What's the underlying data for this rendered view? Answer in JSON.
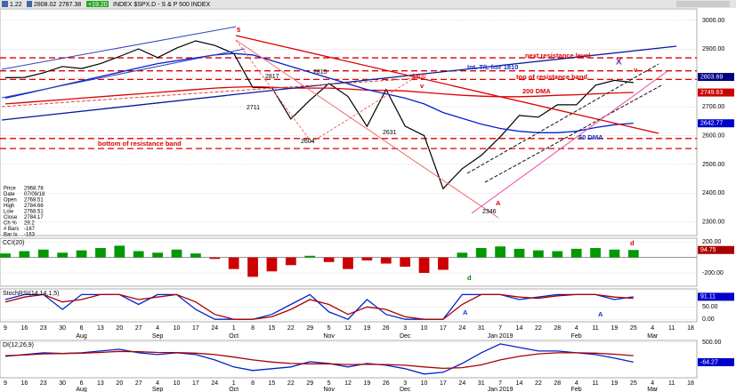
{
  "chart_data": [
    {
      "type": "line",
      "title": "INDEX $SPX.D - S & P 500 INDEX",
      "header": [
        "1.22",
        "2808.02",
        "2787.38",
        "+19.20"
      ],
      "categories": [
        "9",
        "16",
        "23",
        "30",
        "6",
        "13",
        "20",
        "27",
        "4",
        "10",
        "17",
        "24",
        "1",
        "8",
        "15",
        "22",
        "29",
        "5",
        "12",
        "19",
        "26",
        "3",
        "10",
        "17",
        "24",
        "31",
        "7",
        "14",
        "22",
        "28",
        "4",
        "11",
        "19",
        "25",
        "4",
        "11",
        "18"
      ],
      "month_labels": [
        null,
        null,
        null,
        null,
        "Aug",
        null,
        null,
        null,
        "Sep",
        null,
        null,
        null,
        "Oct",
        null,
        null,
        null,
        null,
        "Nov",
        null,
        null,
        null,
        "Dec",
        null,
        null,
        null,
        null,
        "Jan 2019",
        null,
        null,
        null,
        "Feb",
        null,
        null,
        null,
        "Mar",
        null,
        null
      ],
      "series": [
        {
          "color": "#000000",
          "values": [
            2801,
            2802,
            2818,
            2840,
            2833,
            2850,
            2875,
            2901,
            2871,
            2904,
            2929,
            2913,
            2885,
            2767,
            2767,
            2658,
            2723,
            2781,
            2736,
            2632,
            2760,
            2633,
            2600,
            2416,
            2485,
            2531,
            2596,
            2670,
            2664,
            2707,
            2707,
            2775,
            2792,
            2784,
            null,
            null,
            null
          ]
        },
        {
          "name": "200 DMA",
          "color": "#dd0000",
          "values": [
            2710,
            2715,
            2720,
            2725,
            2730,
            2735,
            2740,
            2745,
            2750,
            2755,
            2760,
            2765,
            2768,
            2770,
            2768,
            2765,
            2765,
            2765,
            2762,
            2758,
            2757,
            2755,
            2750,
            2745,
            2740,
            2737,
            2735,
            2735,
            2737,
            2740,
            2742,
            2745,
            2748,
            2750,
            null,
            null,
            null
          ]
        },
        {
          "name": "50 DMA",
          "color": "#0022cc",
          "values": [
            2730,
            2745,
            2760,
            2775,
            2790,
            2805,
            2820,
            2835,
            2850,
            2860,
            2870,
            2880,
            2885,
            2880,
            2860,
            2840,
            2820,
            2800,
            2780,
            2760,
            2745,
            2730,
            2710,
            2680,
            2660,
            2640,
            2625,
            2615,
            2610,
            2610,
            2615,
            2628,
            2638,
            2643,
            null,
            null,
            null
          ]
        }
      ],
      "ylim": [
        2253,
        3040
      ],
      "yticks": [
        {
          "value": 3000,
          "label": "3000.00"
        },
        {
          "value": 2900,
          "label": "2900.00"
        },
        {
          "value": 2800,
          "label": "2800.00"
        },
        {
          "value": 2700,
          "label": "2700.00"
        },
        {
          "value": 2600,
          "label": "2600.00"
        },
        {
          "value": 2500,
          "label": "2500.00"
        },
        {
          "value": 2400,
          "label": "2400.00"
        },
        {
          "value": 2300,
          "label": "2300.00"
        }
      ],
      "levels": [
        {
          "value": 2870
        },
        {
          "value": 2825
        },
        {
          "value": 2795
        },
        {
          "value": 2590
        },
        {
          "value": 2555
        }
      ],
      "level_color": "#dd0000",
      "value_boxes": [
        {
          "value": 2803.69,
          "color": "#000080"
        },
        {
          "value": 2749.63,
          "color": "#cc0000"
        },
        {
          "value": 2642.77,
          "color": "#0000cc"
        }
      ],
      "price_annotations": [
        2815,
        2817,
        2711,
        2604,
        2631,
        2800,
        2346
      ],
      "annotations": {
        "next_resistance": "next resistance level",
        "int_tl": "Int. T/L fmr 1810",
        "top_band": "top of resistance band",
        "bottom_band": "bottom of resistance band",
        "marks": [
          "5",
          "v",
          "v",
          "X",
          "A",
          "d",
          "d",
          "A",
          "A"
        ]
      },
      "info": [
        {
          "label": "Price",
          "value": 2968.78
        },
        {
          "label": "Date",
          "value": "07/09/18"
        },
        {
          "label": "Open",
          "value": 2768.51
        },
        {
          "label": "High",
          "value": 2784.66
        },
        {
          "label": "Low",
          "value": 2768.51
        },
        {
          "label": "Close",
          "value": 2784.17
        },
        {
          "label": "Ch %",
          "value": 29.2
        },
        {
          "label": "# Bars",
          "value": -167
        },
        {
          "label": "Bar Ix",
          "value": -163
        }
      ]
    },
    {
      "type": "bar",
      "title": "CCI(20)",
      "color": "#009900",
      "negative_color": "#cc0000",
      "values": [
        50,
        80,
        100,
        60,
        90,
        120,
        150,
        80,
        60,
        100,
        50,
        -20,
        -150,
        -250,
        -180,
        -100,
        20,
        -60,
        -150,
        -40,
        -80,
        -120,
        -200,
        -160,
        60,
        120,
        140,
        110,
        90,
        80,
        110,
        120,
        100,
        95,
        null,
        null,
        null
      ],
      "ylim": [
        -371,
        246
      ],
      "yticks": [
        {
          "value": 200,
          "label": "200.00"
        },
        {
          "value": -200,
          "label": "-200.00"
        }
      ],
      "value_boxes": [
        {
          "value": 94.75,
          "color": "#aa0000"
        }
      ]
    },
    {
      "type": "line",
      "title": "StochRSI(14,14,1,5)",
      "series": [
        {
          "color": "#0022cc",
          "values": [
            80,
            100,
            100,
            40,
            100,
            100,
            100,
            60,
            100,
            100,
            40,
            0,
            0,
            0,
            20,
            60,
            100,
            30,
            0,
            80,
            20,
            0,
            0,
            0,
            100,
            100,
            100,
            80,
            90,
            100,
            100,
            100,
            80,
            91,
            null,
            null,
            null
          ]
        },
        {
          "color": "#aa0000",
          "values": [
            70,
            90,
            100,
            70,
            80,
            100,
            100,
            80,
            90,
            100,
            70,
            20,
            0,
            0,
            10,
            40,
            80,
            60,
            20,
            50,
            40,
            10,
            0,
            0,
            60,
            100,
            100,
            90,
            85,
            95,
            100,
            100,
            90,
            85,
            null,
            null,
            null
          ]
        }
      ],
      "ylim": [
        -10,
        123
      ],
      "yticks": [
        {
          "value": 50,
          "label": "50.00"
        },
        {
          "value": 0,
          "label": "0.00"
        }
      ],
      "value_boxes": [
        {
          "value": 91.11,
          "color": "#0000cc"
        }
      ]
    },
    {
      "type": "line",
      "title": "DI(12,26,9)",
      "series": [
        {
          "color": "#0022cc",
          "values": [
            100,
            150,
            200,
            180,
            200,
            250,
            300,
            200,
            150,
            200,
            150,
            0,
            -200,
            -300,
            -250,
            -200,
            -50,
            -100,
            -200,
            -100,
            -150,
            -250,
            -400,
            -350,
            -100,
            200,
            450,
            350,
            250,
            250,
            200,
            150,
            50,
            -64,
            null,
            null,
            null
          ]
        },
        {
          "color": "#aa0000",
          "values": [
            120,
            140,
            170,
            180,
            190,
            210,
            240,
            230,
            210,
            205,
            190,
            150,
            80,
            0,
            -60,
            -100,
            -110,
            -110,
            -130,
            -125,
            -130,
            -150,
            -200,
            -240,
            -220,
            -140,
            0,
            100,
            170,
            200,
            200,
            190,
            160,
            120,
            null,
            null,
            null
          ]
        }
      ],
      "ylim": [
        -505,
        549
      ],
      "yticks": [
        {
          "value": 500,
          "label": "500.00"
        }
      ],
      "value_boxes": [
        {
          "value": -64.27,
          "color": "#0000cc"
        }
      ]
    }
  ]
}
